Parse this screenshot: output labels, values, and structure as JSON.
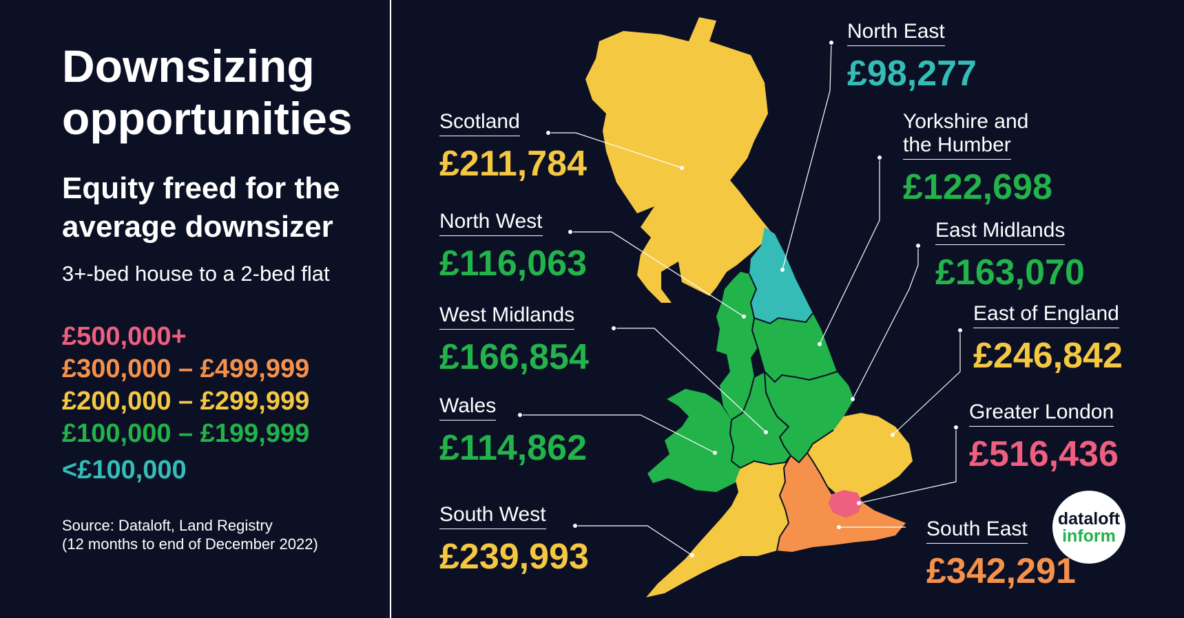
{
  "title": "Downsizing opportunities",
  "subtitle": "Equity freed for the average downsizer",
  "note": "3+-bed house to a 2-bed flat",
  "legend": [
    {
      "label": "£500,000+",
      "color": "#ee5f80"
    },
    {
      "label": "£300,000 – £499,999",
      "color": "#f5914a"
    },
    {
      "label": "£200,000 – £299,999",
      "color": "#f5c842"
    },
    {
      "label": "£100,000 – £199,999",
      "color": "#22b34a"
    },
    {
      "label": "<£100,000",
      "color": "#35bcb7"
    }
  ],
  "source": {
    "line1": "Source: Dataloft, Land Registry",
    "line2": "(12 months to end of December 2022)"
  },
  "regions": {
    "scotland": {
      "name": "Scotland",
      "value": "£211,784",
      "color": "#f5c842"
    },
    "north_west": {
      "name": "North West",
      "value": "£116,063",
      "color": "#22b34a"
    },
    "west_midlands": {
      "name": "West Midlands",
      "value": "£166,854",
      "color": "#22b34a"
    },
    "wales": {
      "name": "Wales",
      "value": "£114,862",
      "color": "#22b34a"
    },
    "south_west": {
      "name": "South West",
      "value": "£239,993",
      "color": "#f5c842"
    },
    "north_east": {
      "name": "North East",
      "value": "£98,277",
      "color": "#35bcb7"
    },
    "yorkshire": {
      "name1": "Yorkshire and",
      "name2": "the Humber",
      "value": "£122,698",
      "color": "#22b34a"
    },
    "east_midlands": {
      "name": "East Midlands",
      "value": "£163,070",
      "color": "#22b34a"
    },
    "east_of_england": {
      "name": "East of England",
      "value": "£246,842",
      "color": "#f5c842"
    },
    "greater_london": {
      "name": "Greater London",
      "value": "£516,436",
      "color": "#ee5f80"
    },
    "south_east": {
      "name": "South East",
      "value": "£342,291",
      "color": "#f5914a"
    }
  },
  "logo": {
    "line1": "dataloft",
    "line2": "inform"
  }
}
